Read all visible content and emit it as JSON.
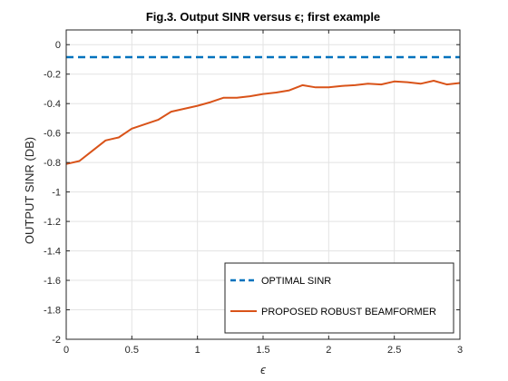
{
  "chart_data": {
    "type": "line",
    "title": "Fig.3. Output SINR versus ϵ;  first example",
    "xlabel": "ϵ",
    "ylabel": "OUTPUT SINR (DB)",
    "xlim": [
      0,
      3
    ],
    "ylim": [
      -2,
      0.1
    ],
    "xticks": [
      0,
      0.5,
      1,
      1.5,
      2,
      2.5,
      3
    ],
    "yticks": [
      0,
      -0.2,
      -0.4,
      -0.6,
      -0.8,
      -1,
      -1.2,
      -1.4,
      -1.6,
      -1.8,
      -2
    ],
    "xtick_labels": [
      "0",
      "0.5",
      "1",
      "1.5",
      "2",
      "2.5",
      "3"
    ],
    "ytick_labels": [
      "0",
      "-0.2",
      "-0.4",
      "-0.6",
      "-0.8",
      "-1",
      "-1.2",
      "-1.4",
      "-1.6",
      "-1.8",
      "-2"
    ],
    "grid": true,
    "legend_position": "bottom-right",
    "series": [
      {
        "name": "OPTIMAL SINR",
        "color": "#0072BD",
        "style": "dashed",
        "x": [
          0,
          3
        ],
        "y": [
          -0.085,
          -0.085
        ]
      },
      {
        "name": "PROPOSED ROBUST BEAMFORMER",
        "color": "#D95319",
        "style": "solid",
        "x": [
          0,
          0.1,
          0.2,
          0.3,
          0.4,
          0.5,
          0.6,
          0.7,
          0.8,
          0.9,
          1.0,
          1.1,
          1.2,
          1.3,
          1.4,
          1.5,
          1.6,
          1.7,
          1.8,
          1.9,
          2.0,
          2.1,
          2.2,
          2.3,
          2.4,
          2.5,
          2.6,
          2.7,
          2.8,
          2.9,
          3.0
        ],
        "y": [
          -0.81,
          -0.79,
          -0.72,
          -0.65,
          -0.63,
          -0.57,
          -0.54,
          -0.51,
          -0.455,
          -0.435,
          -0.415,
          -0.39,
          -0.36,
          -0.36,
          -0.35,
          -0.335,
          -0.325,
          -0.31,
          -0.275,
          -0.29,
          -0.29,
          -0.28,
          -0.275,
          -0.265,
          -0.27,
          -0.25,
          -0.255,
          -0.265,
          -0.245,
          -0.27,
          -0.26
        ]
      }
    ]
  }
}
